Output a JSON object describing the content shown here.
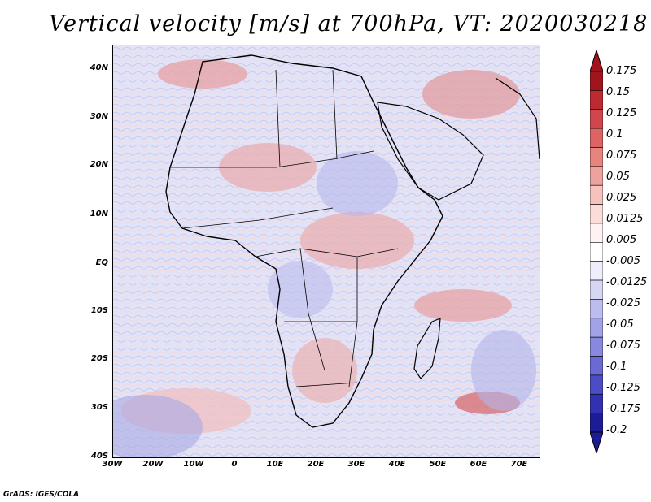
{
  "title": "Vertical velocity [m/s] at 700hPa, VT: 2020030218",
  "credit": "GrADS: IGES/COLA",
  "map": {
    "lat_labels": [
      "40N",
      "30N",
      "20N",
      "10N",
      "EQ",
      "10S",
      "20S",
      "30S",
      "40S"
    ],
    "lon_labels": [
      "30W",
      "20W",
      "10W",
      "0",
      "10E",
      "20E",
      "30E",
      "40E",
      "50E",
      "60E",
      "70E"
    ],
    "ocean_tint": "#e4e6f8",
    "land_tint": "#f6eef0",
    "coastline_color": "#000000"
  },
  "colorbar": {
    "labels": [
      "0.175",
      "0.15",
      "0.125",
      "0.1",
      "0.075",
      "0.05",
      "0.025",
      "0.0125",
      "0.005",
      "-0.005",
      "-0.0125",
      "-0.025",
      "-0.05",
      "-0.075",
      "-0.1",
      "-0.125",
      "-0.175",
      "-0.2"
    ],
    "colors": [
      "#a0141e",
      "#be2a32",
      "#d0464c",
      "#dc6464",
      "#e6847e",
      "#eea29e",
      "#f6c2be",
      "#fadcd8",
      "#fff2f2",
      "#ffffff",
      "#eeeefa",
      "#d6d6f4",
      "#bcbcee",
      "#a2a2e6",
      "#8888de",
      "#6a6ad2",
      "#4c4cc4",
      "#3232b0",
      "#1c1c96"
    ]
  }
}
